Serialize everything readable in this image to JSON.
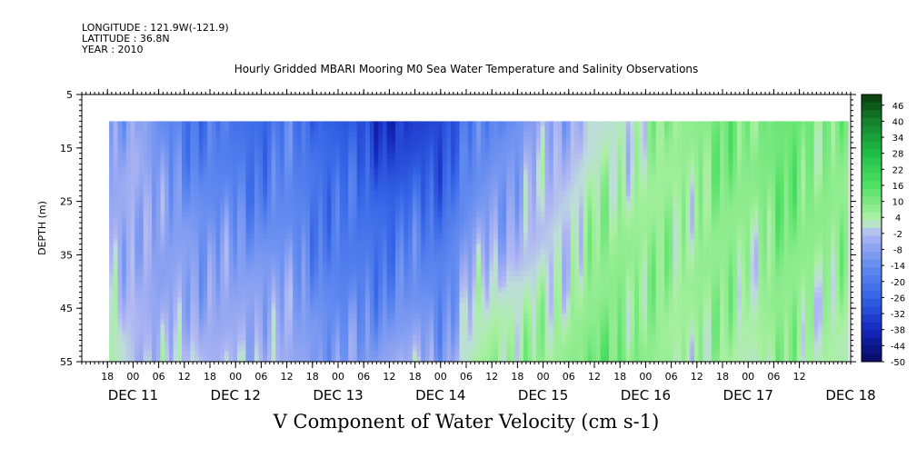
{
  "header": {
    "longitude": "LONGITUDE : 121.9W(-121.9)",
    "latitude": "LATITUDE : 36.8N",
    "year": "YEAR : 2010"
  },
  "chart_data": {
    "type": "heatmap",
    "title": "Hourly Gridded MBARI Mooring M0 Sea Water Temperature and Salinity Observations",
    "xlabel": "V Component of Water Velocity (cm s-1)",
    "ylabel": "DEPTH (m)",
    "y_reversed": true,
    "ylim": [
      5,
      55
    ],
    "y_ticks": [
      "5",
      "15",
      "25",
      "35",
      "45",
      "55"
    ],
    "data_depth_range": [
      10,
      55
    ],
    "x_start_hour": 12,
    "x_end_hour": 192,
    "data_start_hour": 18.4,
    "data_end_hour": 190.5,
    "hour_tick_labels": [
      "18",
      "00",
      "06",
      "12",
      "18",
      "00",
      "06",
      "12",
      "18",
      "00",
      "06",
      "12",
      "18",
      "00",
      "06",
      "12",
      "18",
      "00",
      "06",
      "12",
      "18",
      "00",
      "06",
      "12",
      "18",
      "00",
      "06",
      "12"
    ],
    "date_labels": [
      "DEC 11",
      "DEC 12",
      "DEC 13",
      "DEC 14",
      "DEC 15",
      "DEC 16",
      "DEC 17",
      "DEC 18"
    ],
    "colorbar_labels": [
      "46",
      "40",
      "34",
      "28",
      "22",
      "16",
      "10",
      "4",
      "-2",
      "-8",
      "-14",
      "-20",
      "-26",
      "-32",
      "-38",
      "-44",
      "-50"
    ],
    "colorbar_range": [
      -50,
      50
    ],
    "velocity_profile": {
      "hours": [
        18,
        24,
        30,
        36,
        42,
        48,
        54,
        60,
        66,
        72,
        78,
        84,
        90,
        96,
        102,
        108,
        114,
        120,
        126,
        132,
        138,
        144,
        150,
        156,
        162,
        168,
        174,
        180,
        186,
        190
      ],
      "surface": [
        -12,
        -4,
        -14,
        -18,
        -20,
        -22,
        -24,
        -20,
        -24,
        -28,
        -30,
        -36,
        -34,
        -30,
        -22,
        -16,
        -12,
        -6,
        -4,
        0,
        2,
        4,
        6,
        8,
        10,
        10,
        12,
        12,
        10,
        8
      ],
      "bottom": [
        4,
        -2,
        -6,
        2,
        -4,
        -2,
        0,
        -6,
        -8,
        -12,
        -10,
        -6,
        -4,
        -8,
        2,
        8,
        6,
        4,
        8,
        10,
        12,
        8,
        4,
        6,
        4,
        2,
        6,
        4,
        4,
        2
      ]
    }
  },
  "colors": {
    "positive_max": "#0a3a0a",
    "positive": "#2ed94a",
    "near_zero_pos": "#a8f0a0",
    "near_zero_neg": "#b4b8f2",
    "negative": "#3464e6",
    "negative_max": "#050a60"
  }
}
